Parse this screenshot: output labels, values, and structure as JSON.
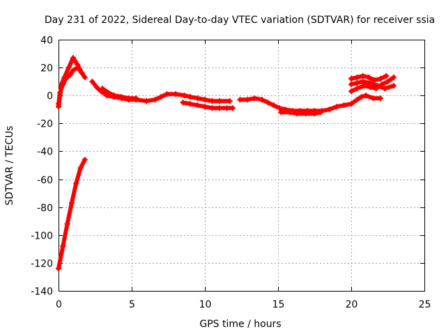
{
  "chart_data": {
    "type": "scatter",
    "title": "Day 231 of 2022, Sidereal Day-to-day VTEC variation (SDTVAR) for receiver ssia",
    "xlabel": "GPS time / hours",
    "ylabel": "SDTVAR / TECUs",
    "xlim": [
      0,
      25
    ],
    "ylim": [
      -140,
      40
    ],
    "xticks": [
      0,
      5,
      10,
      15,
      20,
      25
    ],
    "xtick_labels": [
      "0",
      "5",
      "10",
      "15",
      "20",
      "25"
    ],
    "yticks": [
      40,
      20,
      0,
      -20,
      -40,
      -60,
      -80,
      -100,
      -120,
      -140
    ],
    "ytick_labels": [
      "40",
      "20",
      "0",
      "-20",
      "-40",
      "-60",
      "-80",
      "-100",
      "-120",
      "-140"
    ],
    "grid": true,
    "legend": "none",
    "color": "#ff0000",
    "series": [
      {
        "segments": [
          [
            [
              0.0,
              -124
            ],
            [
              0.3,
              -108
            ],
            [
              0.6,
              -92
            ],
            [
              0.9,
              -77
            ],
            [
              1.2,
              -63
            ],
            [
              1.5,
              -52
            ],
            [
              1.8,
              -46
            ]
          ],
          [
            [
              0.0,
              -8
            ],
            [
              0.1,
              0
            ],
            [
              0.2,
              8
            ],
            [
              0.4,
              13
            ],
            [
              0.7,
              20
            ],
            [
              1.0,
              27
            ],
            [
              1.3,
              22
            ],
            [
              1.6,
              16
            ],
            [
              1.8,
              13
            ]
          ],
          [
            [
              0.0,
              -6
            ],
            [
              0.1,
              2
            ],
            [
              0.3,
              8
            ],
            [
              0.5,
              12
            ],
            [
              0.8,
              15
            ],
            [
              1.0,
              18
            ],
            [
              1.3,
              20
            ],
            [
              1.6,
              16
            ]
          ],
          [
            [
              2.3,
              10
            ],
            [
              2.6,
              6
            ],
            [
              2.9,
              3
            ],
            [
              3.3,
              0
            ],
            [
              3.8,
              -1
            ],
            [
              4.3,
              -2
            ],
            [
              4.8,
              -3
            ],
            [
              5.3,
              -3
            ],
            [
              6.0,
              -4
            ],
            [
              6.6,
              -3
            ],
            [
              7.0,
              -1
            ],
            [
              7.4,
              1
            ],
            [
              8.0,
              1
            ],
            [
              8.6,
              0
            ],
            [
              9.0,
              -1
            ],
            [
              9.5,
              -2
            ],
            [
              10.0,
              -3
            ],
            [
              10.5,
              -4
            ],
            [
              11.0,
              -4
            ],
            [
              11.7,
              -4
            ]
          ],
          [
            [
              3.0,
              5
            ],
            [
              3.4,
              2
            ],
            [
              3.8,
              0
            ],
            [
              4.3,
              -1
            ],
            [
              4.8,
              -2
            ],
            [
              5.3,
              -2
            ]
          ],
          [
            [
              8.5,
              -5
            ],
            [
              9.0,
              -6
            ],
            [
              9.5,
              -7
            ],
            [
              10.0,
              -8
            ],
            [
              10.5,
              -9
            ],
            [
              11.0,
              -9
            ],
            [
              11.5,
              -9
            ],
            [
              11.9,
              -9
            ]
          ],
          [
            [
              12.4,
              -3
            ],
            [
              12.9,
              -3
            ],
            [
              13.4,
              -2
            ],
            [
              13.9,
              -3
            ],
            [
              14.3,
              -5
            ],
            [
              14.7,
              -7
            ],
            [
              15.1,
              -9
            ],
            [
              15.5,
              -10
            ],
            [
              16.0,
              -11
            ],
            [
              16.5,
              -11
            ],
            [
              17.0,
              -11
            ],
            [
              17.5,
              -11
            ],
            [
              18.0,
              -11
            ],
            [
              18.5,
              -10
            ],
            [
              19.0,
              -8
            ],
            [
              19.5,
              -7
            ],
            [
              20.0,
              -6
            ],
            [
              20.4,
              -3
            ],
            [
              20.7,
              -1
            ],
            [
              21.0,
              0
            ],
            [
              21.5,
              -2
            ],
            [
              22.0,
              -2
            ]
          ],
          [
            [
              15.2,
              -12
            ],
            [
              15.8,
              -12
            ],
            [
              16.3,
              -13
            ],
            [
              16.9,
              -13
            ],
            [
              17.5,
              -13
            ],
            [
              17.9,
              -12
            ]
          ],
          [
            [
              20.0,
              12
            ],
            [
              20.4,
              13
            ],
            [
              20.8,
              14
            ],
            [
              21.2,
              13
            ],
            [
              21.6,
              11
            ],
            [
              22.0,
              12
            ],
            [
              22.4,
              14
            ]
          ],
          [
            [
              20.0,
              3
            ],
            [
              20.4,
              5
            ],
            [
              20.9,
              7
            ],
            [
              21.3,
              6
            ],
            [
              21.7,
              5
            ],
            [
              22.1,
              8
            ],
            [
              22.5,
              10
            ],
            [
              22.9,
              13
            ]
          ],
          [
            [
              20.0,
              8
            ],
            [
              20.4,
              9
            ],
            [
              20.8,
              10
            ],
            [
              21.3,
              9
            ],
            [
              21.8,
              7
            ],
            [
              22.3,
              5
            ],
            [
              22.9,
              7
            ]
          ]
        ]
      }
    ]
  }
}
